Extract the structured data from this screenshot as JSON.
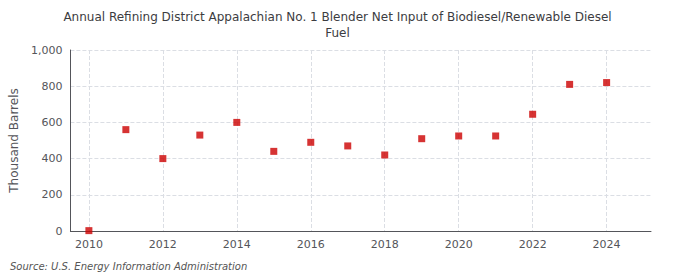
{
  "chart_data": {
    "type": "scatter",
    "title": "Annual Refining District Appalachian No. 1 Blender Net Input of Biodiesel/Renewable Diesel\nFuel",
    "ylabel": "Thousand Barrels",
    "annotations": [
      "Source: U.S. Energy Information Administration"
    ],
    "x": [
      2010,
      2011,
      2012,
      2013,
      2014,
      2015,
      2016,
      2017,
      2018,
      2019,
      2020,
      2021,
      2022,
      2023,
      2024
    ],
    "values": [
      2,
      560,
      400,
      530,
      600,
      440,
      490,
      470,
      420,
      510,
      525,
      525,
      645,
      810,
      820
    ],
    "color": "#cc0000",
    "marker": "square",
    "xlim": [
      2009.5,
      2025.2
    ],
    "ylim": [
      0,
      1000
    ],
    "xticks": [
      2010,
      2012,
      2014,
      2016,
      2018,
      2020,
      2022,
      2024
    ],
    "yticks": [
      0,
      200,
      400,
      600,
      800,
      {
        "value": 1000,
        "label": "1,000"
      }
    ],
    "grid": true
  }
}
